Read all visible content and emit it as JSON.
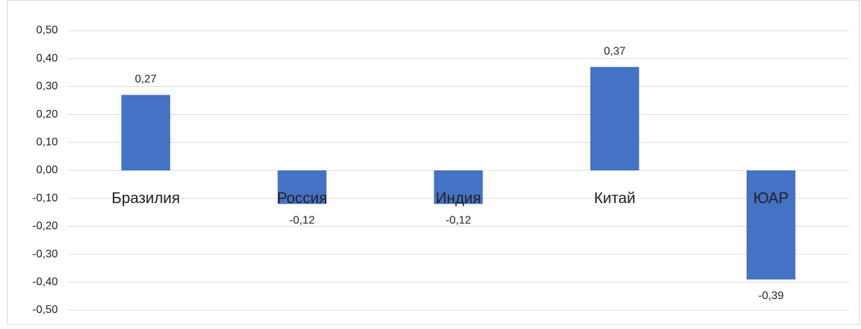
{
  "chart_data": {
    "type": "bar",
    "categories": [
      "Бразилия",
      "Россия",
      "Индия",
      "Китай",
      "ЮАР"
    ],
    "values": [
      0.27,
      -0.12,
      -0.12,
      0.37,
      -0.39
    ],
    "value_labels": [
      "0,27",
      "-0,12",
      "-0,12",
      "0,37",
      "-0,39"
    ],
    "color": "#4472c4",
    "ylim": [
      -0.5,
      0.5
    ],
    "yticks": [
      {
        "value": 0.5,
        "label": "0,50"
      },
      {
        "value": 0.4,
        "label": "0,40"
      },
      {
        "value": 0.3,
        "label": "0,30"
      },
      {
        "value": 0.2,
        "label": "0,20"
      },
      {
        "value": 0.1,
        "label": "0,10"
      },
      {
        "value": 0,
        "label": "0,00"
      },
      {
        "value": -0.1,
        "label": "-0,10"
      },
      {
        "value": -0.2,
        "label": "-0,20"
      },
      {
        "value": -0.3,
        "label": "-0,30"
      },
      {
        "value": -0.4,
        "label": "-0,40"
      },
      {
        "value": -0.5,
        "label": "-0,50"
      }
    ],
    "grid": true
  }
}
